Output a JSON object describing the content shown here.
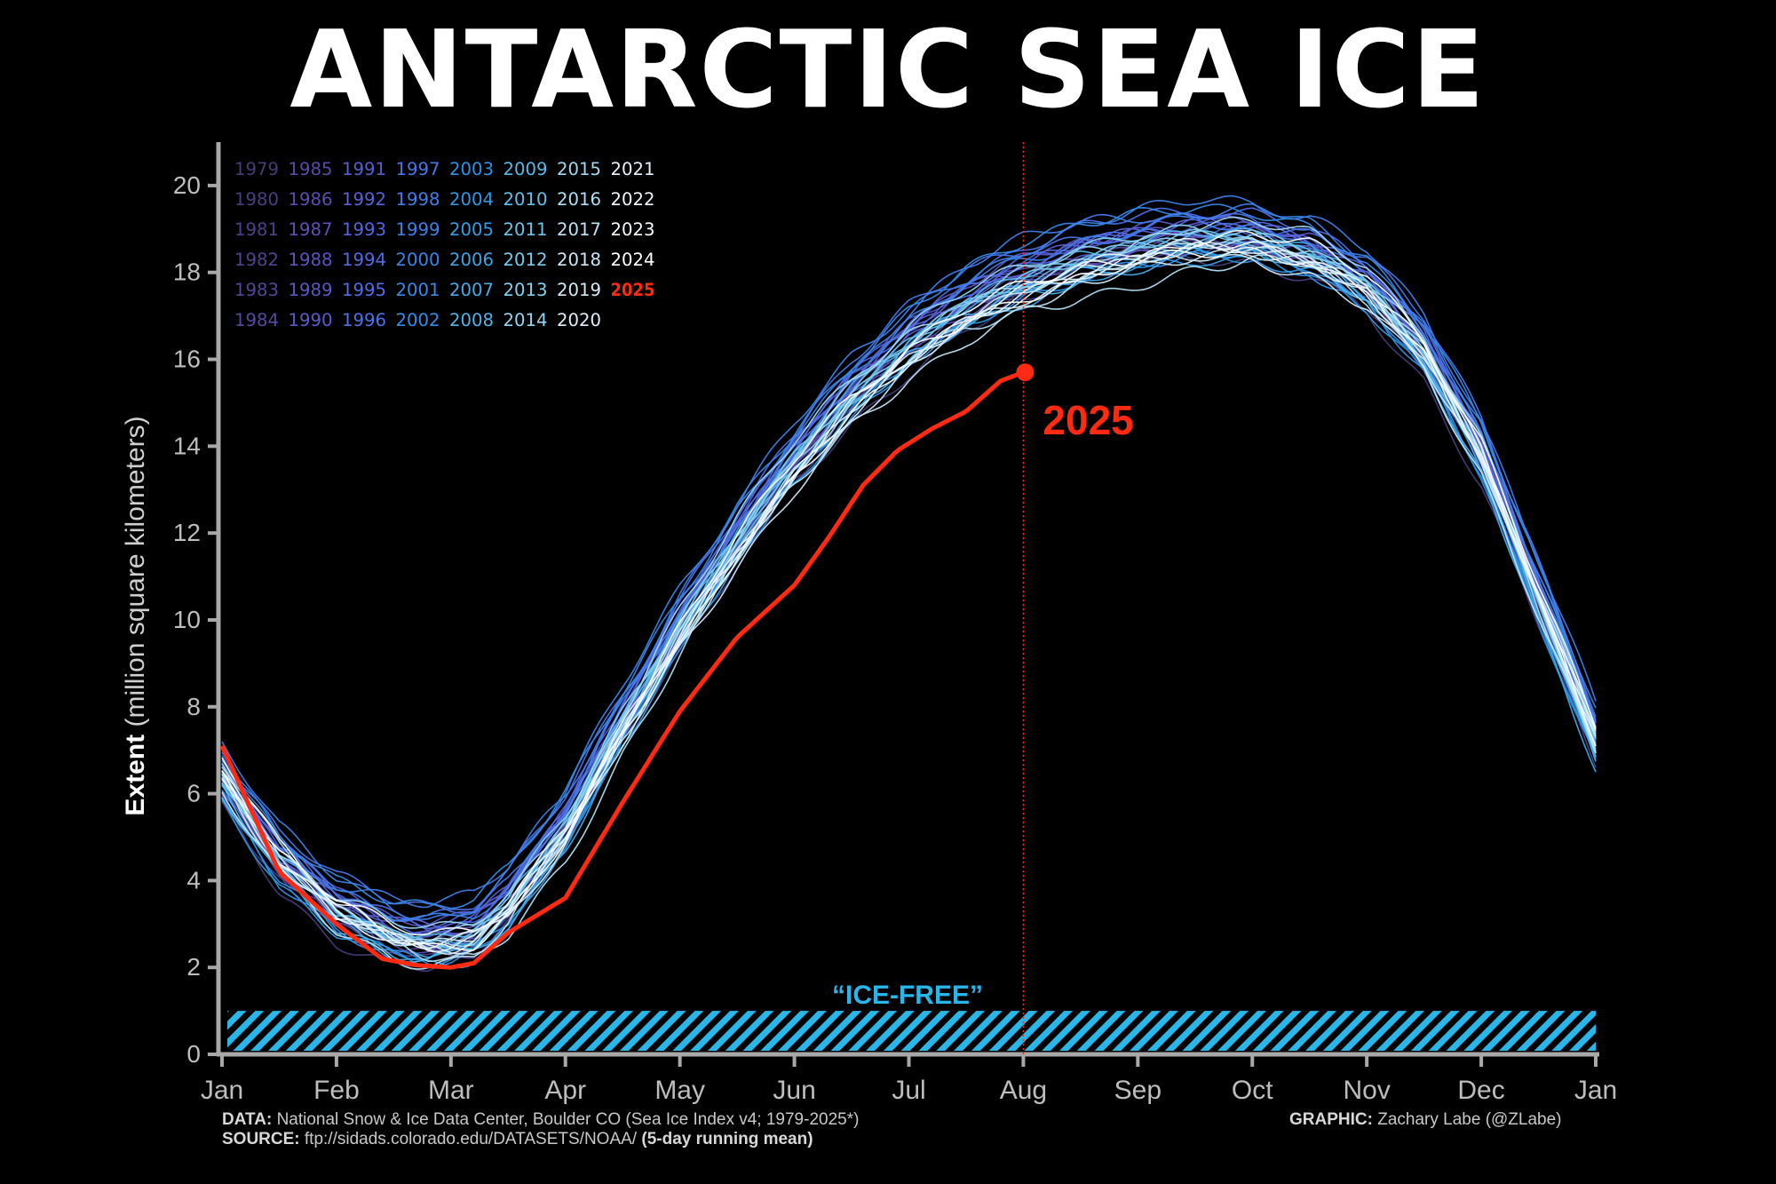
{
  "title": "ANTARCTIC SEA ICE",
  "footer": {
    "data_label": "DATA:",
    "data_text": "National Snow & Ice Data Center, Boulder CO (Sea Ice Index v4; 1979-2025*)",
    "source_label": "SOURCE:",
    "source_text": "ftp://sidads.colorado.edu/DATASETS/NOAA/",
    "source_note": "(5-day running mean)",
    "graphic_label": "GRAPHIC:",
    "graphic_text": "Zachary Labe (@ZLabe)"
  },
  "chart_data": {
    "type": "line",
    "ylabel_bold": "Extent",
    "ylabel_rest": "(million square kilometers)",
    "xlabel": "",
    "ylim": [
      0,
      21
    ],
    "yticks": [
      0,
      2,
      4,
      6,
      8,
      10,
      12,
      14,
      16,
      18,
      20
    ],
    "x_ticks": [
      "Jan",
      "Feb",
      "Mar",
      "Apr",
      "May",
      "Jun",
      "Jul",
      "Aug",
      "Sep",
      "Oct",
      "Nov",
      "Dec",
      "Jan"
    ],
    "x_domain_months": [
      0,
      12
    ],
    "current_date_marker_month": 7.0,
    "ice_free": {
      "label": "“ICE-FREE”",
      "threshold": 1,
      "color": "#29b6e8"
    },
    "grid": false,
    "legend_position": "top-left",
    "legend_columns": [
      [
        "1979",
        "1980",
        "1981",
        "1982",
        "1983",
        "1984"
      ],
      [
        "1985",
        "1986",
        "1987",
        "1988",
        "1989",
        "1990"
      ],
      [
        "1991",
        "1992",
        "1993",
        "1994",
        "1995",
        "1996"
      ],
      [
        "1997",
        "1998",
        "1999",
        "2000",
        "2001",
        "2002"
      ],
      [
        "2003",
        "2004",
        "2005",
        "2006",
        "2007",
        "2008"
      ],
      [
        "2009",
        "2010",
        "2011",
        "2012",
        "2013",
        "2014"
      ],
      [
        "2015",
        "2016",
        "2017",
        "2018",
        "2019",
        "2020"
      ],
      [
        "2021",
        "2022",
        "2023",
        "2024",
        "2025"
      ]
    ],
    "highlight": {
      "name": "2025",
      "color": "#ff2a12",
      "x_months": [
        0,
        0.5,
        1,
        1.4,
        1.7,
        2.0,
        2.2,
        2.5,
        3.0,
        3.5,
        4.0,
        4.5,
        5.0,
        5.3,
        5.6,
        5.9,
        6.2,
        6.5,
        6.8,
        7.0
      ],
      "values": [
        7.1,
        4.2,
        3.0,
        2.2,
        2.05,
        2.0,
        2.1,
        2.8,
        3.6,
        5.8,
        7.9,
        9.6,
        10.8,
        11.9,
        13.1,
        13.9,
        14.4,
        14.8,
        15.5,
        15.7
      ]
    },
    "climatology_shape": {
      "x_months": [
        0,
        0.5,
        1,
        1.5,
        1.8,
        2.0,
        2.2,
        2.5,
        3.0,
        3.5,
        4.0,
        4.5,
        5.0,
        5.5,
        6.0,
        6.5,
        7.0,
        7.5,
        8.0,
        8.5,
        9.0,
        9.5,
        10.0,
        10.5,
        11.0,
        11.5,
        12.0
      ],
      "values": [
        6.4,
        4.5,
        3.4,
        2.85,
        2.7,
        2.75,
        2.9,
        3.6,
        5.4,
        7.8,
        10.0,
        12.0,
        13.8,
        15.3,
        16.5,
        17.4,
        18.0,
        18.45,
        18.75,
        18.95,
        18.9,
        18.55,
        17.8,
        16.3,
        13.9,
        10.6,
        7.3
      ]
    }
  }
}
